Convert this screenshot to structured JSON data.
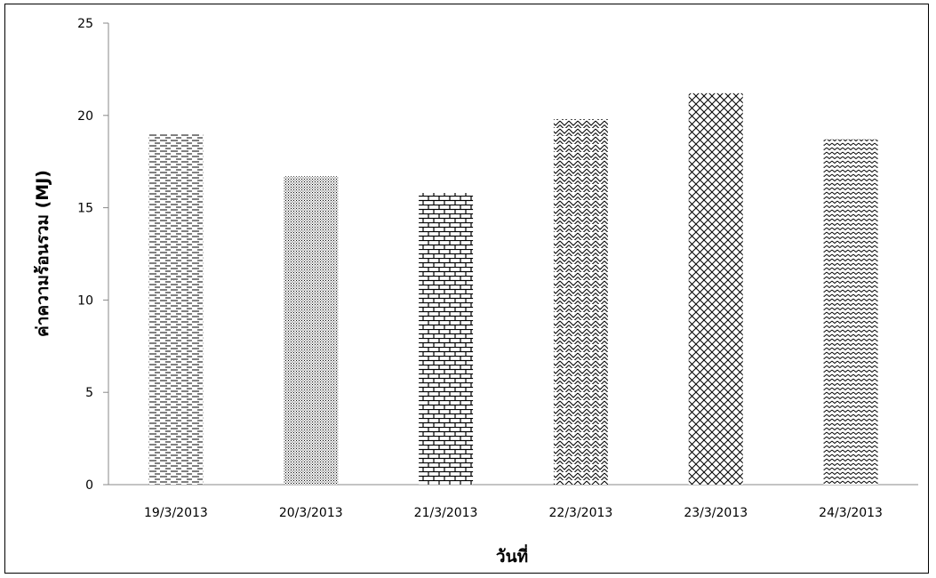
{
  "chart_data": {
    "type": "bar",
    "title": "",
    "xlabel": "วันที่",
    "ylabel": "ค่าความร้อนรวม (MJ)",
    "categories": [
      "19/3/2013",
      "20/3/2013",
      "21/3/2013",
      "22/3/2013",
      "23/3/2013",
      "24/3/2013"
    ],
    "values": [
      19.0,
      16.7,
      15.8,
      19.8,
      21.2,
      18.7
    ],
    "ylim": [
      0,
      25
    ],
    "yticks": [
      "0",
      "5",
      "10",
      "15",
      "20",
      "25"
    ],
    "grid": false,
    "legend": "none",
    "bar_patterns": [
      "dashes",
      "fine-dots",
      "bricks",
      "zigzag",
      "diagonal-cross",
      "small-wave"
    ],
    "bar_color": "#000000"
  }
}
